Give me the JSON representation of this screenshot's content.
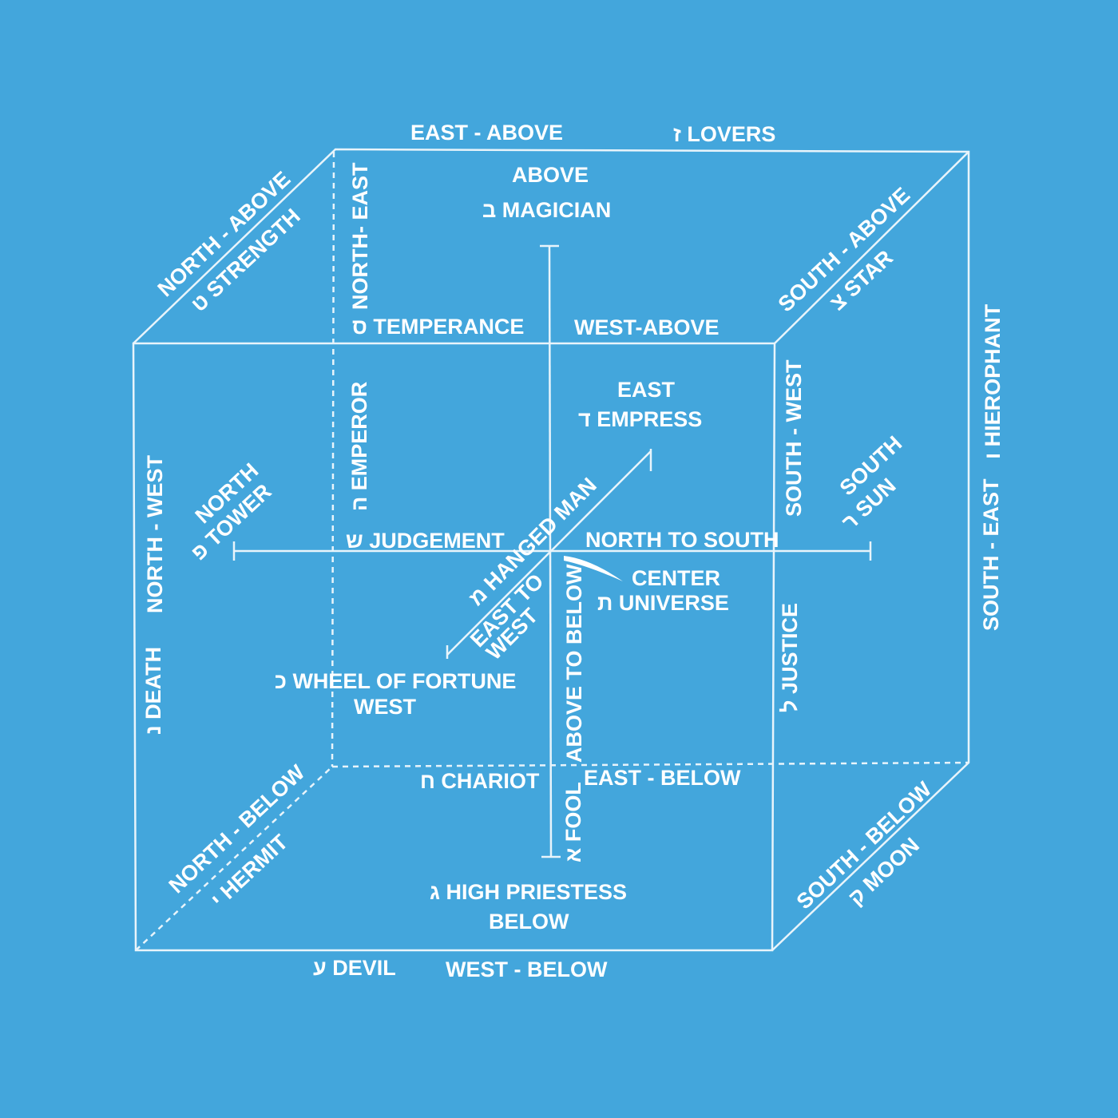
{
  "background_color": "#43a6dc",
  "line_color": "#e8f4fb",
  "labels": {
    "east_above": "EAST - ABOVE",
    "lovers": "ז LOVERS",
    "above": "ABOVE",
    "magician": "ב MAGICIAN",
    "north_above": "NORTH - ABOVE",
    "strength": "ט STRENGTH",
    "north_east": "NORTH- EAST",
    "temperance": "ס  TEMPERANCE",
    "west_above": "WEST-ABOVE",
    "south_above": "SOUTH - ABOVE",
    "star": "צ STAR",
    "hierophant": "ו HIEROPHANT",
    "south_east": "SOUTH - EAST",
    "east": "EAST",
    "empress": "ד  EMPRESS",
    "south_west": "SOUTH - WEST",
    "south": "SOUTH",
    "sun": "ר SUN",
    "emperor": "ה EMPEROR",
    "north_west": "NORTH - WEST",
    "north": "NORTH",
    "tower": "פ TOWER",
    "judgement": "ש JUDGEMENT",
    "hanged_man": "מ  HANGED MAN",
    "north_to_south": "NORTH TO SOUTH",
    "center": "CENTER",
    "universe": "ת UNIVERSE",
    "east_to": "EAST TO",
    "west_axis": "WEST",
    "above_to_below": "ABOVE TO BELOW",
    "justice": "ל JUSTICE",
    "death": "נ DEATH",
    "wheel": "כ  WHEEL OF FORTUNE",
    "west": "WEST",
    "chariot": "ח CHARIOT",
    "east_below": "EAST - BELOW",
    "fool": "א FOOL",
    "north_below": "NORTH - BELOW",
    "hermit": "י HERMIT",
    "high_priestess": "ג  HIGH PRIESTESS",
    "below": "BELOW",
    "south_below": "SOUTH - BELOW",
    "moon": "ק MOON",
    "devil": "ע DEVIL",
    "west_below": "WEST - BELOW"
  }
}
